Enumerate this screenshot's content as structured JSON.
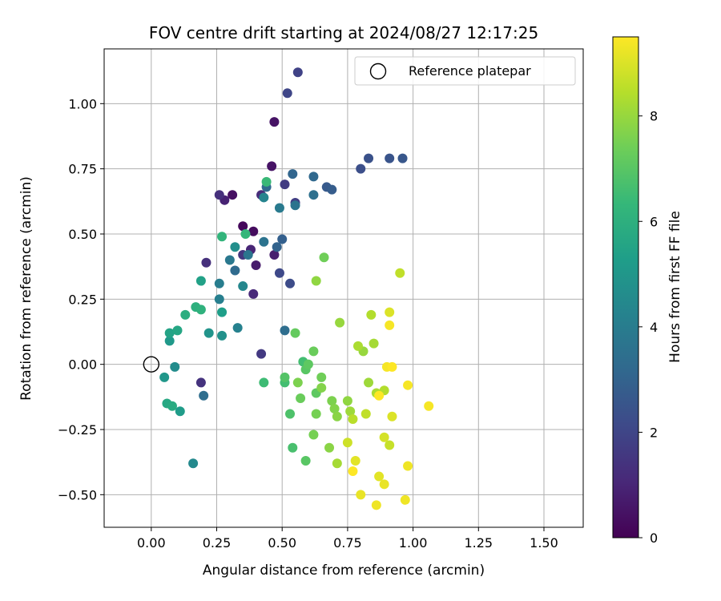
{
  "chart_data": {
    "type": "scatter",
    "title": "FOV centre drift starting at 2024/08/27 12:17:25",
    "xlabel": "Angular distance from reference (arcmin)",
    "ylabel": "Rotation from reference (arcmin)",
    "xlim": [
      -0.18,
      1.65
    ],
    "ylim": [
      -0.625,
      1.21
    ],
    "x_ticks": [
      "0.00",
      "0.25",
      "0.50",
      "0.75",
      "1.00",
      "1.25",
      "1.50"
    ],
    "x_tick_values": [
      0,
      0.25,
      0.5,
      0.75,
      1.0,
      1.25,
      1.5
    ],
    "y_ticks": [
      "−0.50",
      "−0.25",
      "0.00",
      "0.25",
      "0.50",
      "0.75",
      "1.00"
    ],
    "y_tick_values": [
      -0.5,
      -0.25,
      0,
      0.25,
      0.5,
      0.75,
      1.0
    ],
    "grid": true,
    "legend": {
      "position": "top-right",
      "entries": [
        "Reference platepar"
      ]
    },
    "reference_point": {
      "x": 0,
      "y": 0,
      "label": "Reference platepar"
    },
    "colorbar": {
      "label": "Hours from first FF file",
      "range": [
        0,
        9.5
      ],
      "ticks": [
        "0",
        "2",
        "4",
        "6",
        "8"
      ],
      "tick_values": [
        0,
        2,
        4,
        6,
        8
      ],
      "colormap": [
        "#440154",
        "#482878",
        "#3e4989",
        "#31688e",
        "#26828e",
        "#1f9e89",
        "#35b779",
        "#6ece58",
        "#b5de2b",
        "#fde725"
      ]
    },
    "points": [
      [
        0.35,
        0.53,
        0.2
      ],
      [
        0.39,
        0.51,
        0.3
      ],
      [
        0.31,
        0.65,
        0.4
      ],
      [
        0.47,
        0.93,
        0.5
      ],
      [
        0.46,
        0.76,
        0.5
      ],
      [
        0.4,
        0.38,
        0.7
      ],
      [
        0.47,
        0.42,
        0.8
      ],
      [
        0.28,
        0.63,
        0.9
      ],
      [
        0.38,
        0.44,
        1.0
      ],
      [
        0.39,
        0.27,
        1.1
      ],
      [
        0.42,
        0.65,
        1.2
      ],
      [
        0.26,
        0.65,
        1.3
      ],
      [
        0.21,
        0.39,
        1.3
      ],
      [
        0.19,
        -0.07,
        1.4
      ],
      [
        0.35,
        0.42,
        1.5
      ],
      [
        0.42,
        0.04,
        1.6
      ],
      [
        0.51,
        0.69,
        1.7
      ],
      [
        0.55,
        0.62,
        1.8
      ],
      [
        0.56,
        1.12,
        1.9
      ],
      [
        0.52,
        1.04,
        2.0
      ],
      [
        0.49,
        0.35,
        2.1
      ],
      [
        0.53,
        0.31,
        2.2
      ],
      [
        0.8,
        0.75,
        2.3
      ],
      [
        0.83,
        0.79,
        2.4
      ],
      [
        0.91,
        0.79,
        2.5
      ],
      [
        0.96,
        0.79,
        2.6
      ],
      [
        0.67,
        0.68,
        2.7
      ],
      [
        0.69,
        0.67,
        2.8
      ],
      [
        0.5,
        0.48,
        2.9
      ],
      [
        0.48,
        0.45,
        3.0
      ],
      [
        0.54,
        0.73,
        3.1
      ],
      [
        0.62,
        0.72,
        3.2
      ],
      [
        0.44,
        0.68,
        3.3
      ],
      [
        0.32,
        0.36,
        3.3
      ],
      [
        0.51,
        0.13,
        3.4
      ],
      [
        0.2,
        -0.12,
        3.4
      ],
      [
        0.62,
        0.65,
        3.5
      ],
      [
        0.43,
        0.47,
        3.6
      ],
      [
        0.55,
        0.61,
        3.6
      ],
      [
        0.37,
        0.42,
        3.7
      ],
      [
        0.3,
        0.4,
        3.8
      ],
      [
        0.49,
        0.6,
        3.9
      ],
      [
        0.26,
        0.31,
        4.0
      ],
      [
        0.26,
        0.25,
        4.1
      ],
      [
        0.33,
        0.14,
        4.2
      ],
      [
        0.43,
        0.64,
        4.3
      ],
      [
        0.35,
        0.3,
        4.4
      ],
      [
        0.16,
        -0.38,
        4.5
      ],
      [
        0.09,
        -0.01,
        4.6
      ],
      [
        0.32,
        0.45,
        4.7
      ],
      [
        0.27,
        0.11,
        4.8
      ],
      [
        0.22,
        0.12,
        4.9
      ],
      [
        0.05,
        -0.05,
        5.0
      ],
      [
        0.07,
        0.09,
        5.1
      ],
      [
        0.11,
        -0.18,
        5.2
      ],
      [
        0.27,
        0.2,
        5.3
      ],
      [
        0.19,
        0.32,
        5.4
      ],
      [
        0.07,
        0.12,
        5.5
      ],
      [
        0.1,
        0.13,
        5.6
      ],
      [
        0.06,
        -0.15,
        5.7
      ],
      [
        0.08,
        -0.16,
        5.8
      ],
      [
        0.13,
        0.19,
        5.9
      ],
      [
        0.17,
        0.22,
        6.0
      ],
      [
        0.19,
        0.21,
        6.1
      ],
      [
        0.27,
        0.49,
        6.2
      ],
      [
        0.36,
        0.5,
        6.3
      ],
      [
        0.44,
        0.7,
        6.4
      ],
      [
        0.43,
        -0.07,
        6.5
      ],
      [
        0.51,
        -0.07,
        6.6
      ],
      [
        0.58,
        0.01,
        6.6
      ],
      [
        0.54,
        -0.32,
        6.7
      ],
      [
        0.53,
        -0.19,
        6.8
      ],
      [
        0.51,
        -0.05,
        6.9
      ],
      [
        0.59,
        -0.37,
        7.0
      ],
      [
        0.59,
        -0.02,
        7.0
      ],
      [
        0.6,
        0.0,
        7.1
      ],
      [
        0.63,
        -0.11,
        7.1
      ],
      [
        0.55,
        0.12,
        7.2
      ],
      [
        0.57,
        -0.13,
        7.3
      ],
      [
        0.62,
        0.05,
        7.3
      ],
      [
        0.65,
        -0.05,
        7.4
      ],
      [
        0.66,
        0.41,
        7.4
      ],
      [
        0.62,
        -0.27,
        7.5
      ],
      [
        0.63,
        -0.19,
        7.5
      ],
      [
        0.69,
        -0.14,
        7.6
      ],
      [
        0.56,
        -0.07,
        7.6
      ],
      [
        0.65,
        -0.09,
        7.7
      ],
      [
        0.7,
        -0.17,
        7.7
      ],
      [
        0.68,
        -0.32,
        7.8
      ],
      [
        0.71,
        -0.2,
        7.8
      ],
      [
        0.63,
        0.32,
        7.9
      ],
      [
        0.75,
        -0.14,
        7.9
      ],
      [
        0.72,
        0.16,
        8.0
      ],
      [
        0.81,
        0.05,
        8.0
      ],
      [
        0.83,
        -0.07,
        8.1
      ],
      [
        0.76,
        -0.18,
        8.1
      ],
      [
        0.85,
        0.08,
        8.2
      ],
      [
        0.71,
        -0.38,
        8.2
      ],
      [
        0.79,
        0.07,
        8.3
      ],
      [
        0.86,
        -0.11,
        8.3
      ],
      [
        0.89,
        -0.1,
        8.4
      ],
      [
        0.84,
        0.19,
        8.4
      ],
      [
        0.77,
        -0.21,
        8.5
      ],
      [
        0.95,
        0.35,
        8.6
      ],
      [
        0.82,
        -0.19,
        8.6
      ],
      [
        0.91,
        -0.31,
        8.7
      ],
      [
        0.75,
        -0.3,
        8.8
      ],
      [
        0.89,
        -0.28,
        8.9
      ],
      [
        0.92,
        -0.2,
        9.0
      ],
      [
        0.91,
        0.2,
        9.0
      ],
      [
        0.87,
        -0.43,
        9.1
      ],
      [
        0.78,
        -0.37,
        9.1
      ],
      [
        0.8,
        -0.5,
        9.2
      ],
      [
        0.89,
        -0.46,
        9.2
      ],
      [
        0.86,
        -0.54,
        9.3
      ],
      [
        0.97,
        -0.52,
        9.3
      ],
      [
        0.98,
        -0.39,
        9.3
      ],
      [
        0.98,
        -0.08,
        9.4
      ],
      [
        1.06,
        -0.16,
        9.4
      ],
      [
        0.9,
        -0.01,
        9.4
      ],
      [
        0.91,
        0.15,
        9.4
      ],
      [
        0.87,
        -0.12,
        9.5
      ],
      [
        0.77,
        -0.41,
        9.5
      ],
      [
        0.92,
        -0.01,
        9.5
      ]
    ]
  }
}
